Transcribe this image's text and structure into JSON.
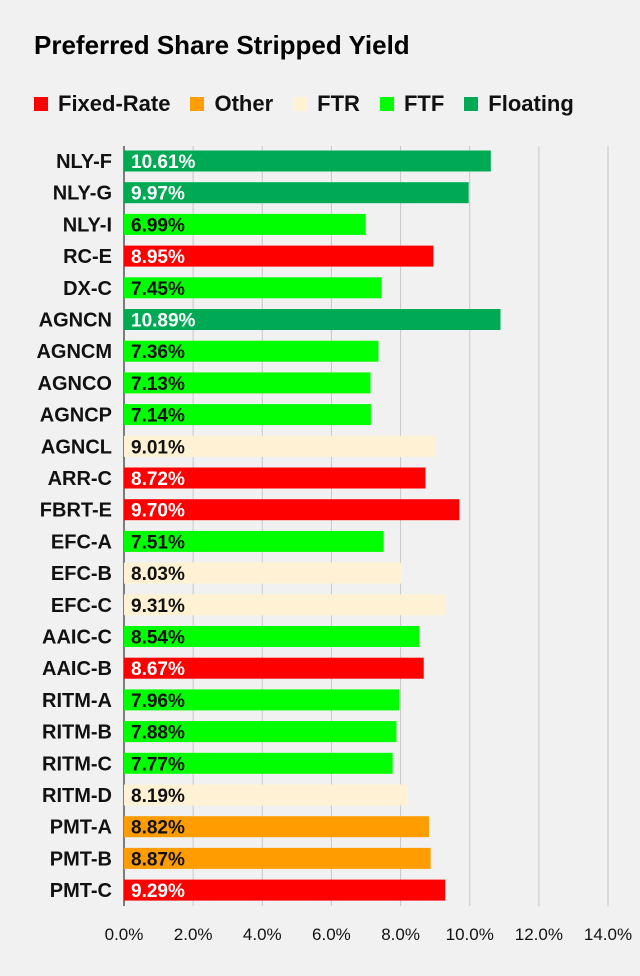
{
  "chart_data": {
    "type": "bar",
    "orientation": "horizontal",
    "title": "Preferred Share Stripped Yield",
    "legend_position": "top",
    "grid": true,
    "xlim": [
      0,
      14
    ],
    "xticks": [
      "0.0%",
      "2.0%",
      "4.0%",
      "6.0%",
      "8.0%",
      "10.0%",
      "12.0%",
      "14.0%"
    ],
    "legend": [
      {
        "name": "Fixed-Rate",
        "color": "#ff0000"
      },
      {
        "name": "Other",
        "color": "#ff9d00"
      },
      {
        "name": "FTR",
        "color": "#fff2d4"
      },
      {
        "name": "FTF",
        "color": "#00ff00"
      },
      {
        "name": "Floating",
        "color": "#00aa55"
      }
    ],
    "categories": [
      "NLY-F",
      "NLY-G",
      "NLY-I",
      "RC-E",
      "DX-C",
      "AGNCN",
      "AGNCM",
      "AGNCO",
      "AGNCP",
      "AGNCL",
      "ARR-C",
      "FBRT-E",
      "EFC-A",
      "EFC-B",
      "EFC-C",
      "AAIC-C",
      "AAIC-B",
      "RITM-A",
      "RITM-B",
      "RITM-C",
      "RITM-D",
      "PMT-A",
      "PMT-B",
      "PMT-C"
    ],
    "values": [
      10.61,
      9.97,
      6.99,
      8.95,
      7.45,
      10.89,
      7.36,
      7.13,
      7.14,
      9.01,
      8.72,
      9.7,
      7.51,
      8.03,
      9.31,
      8.54,
      8.67,
      7.96,
      7.88,
      7.77,
      8.19,
      8.82,
      8.87,
      9.29
    ],
    "value_labels": [
      "10.61%",
      "9.97%",
      "6.99%",
      "8.95%",
      "7.45%",
      "10.89%",
      "7.36%",
      "7.13%",
      "7.14%",
      "9.01%",
      "8.72%",
      "9.70%",
      "7.51%",
      "8.03%",
      "9.31%",
      "8.54%",
      "8.67%",
      "7.96%",
      "7.88%",
      "7.77%",
      "8.19%",
      "8.82%",
      "8.87%",
      "9.29%"
    ],
    "groups": [
      "Floating",
      "Floating",
      "FTF",
      "Fixed-Rate",
      "FTF",
      "Floating",
      "FTF",
      "FTF",
      "FTF",
      "FTR",
      "Fixed-Rate",
      "Fixed-Rate",
      "FTF",
      "FTR",
      "FTR",
      "FTF",
      "Fixed-Rate",
      "FTF",
      "FTF",
      "FTF",
      "FTR",
      "Other",
      "Other",
      "Fixed-Rate"
    ]
  }
}
